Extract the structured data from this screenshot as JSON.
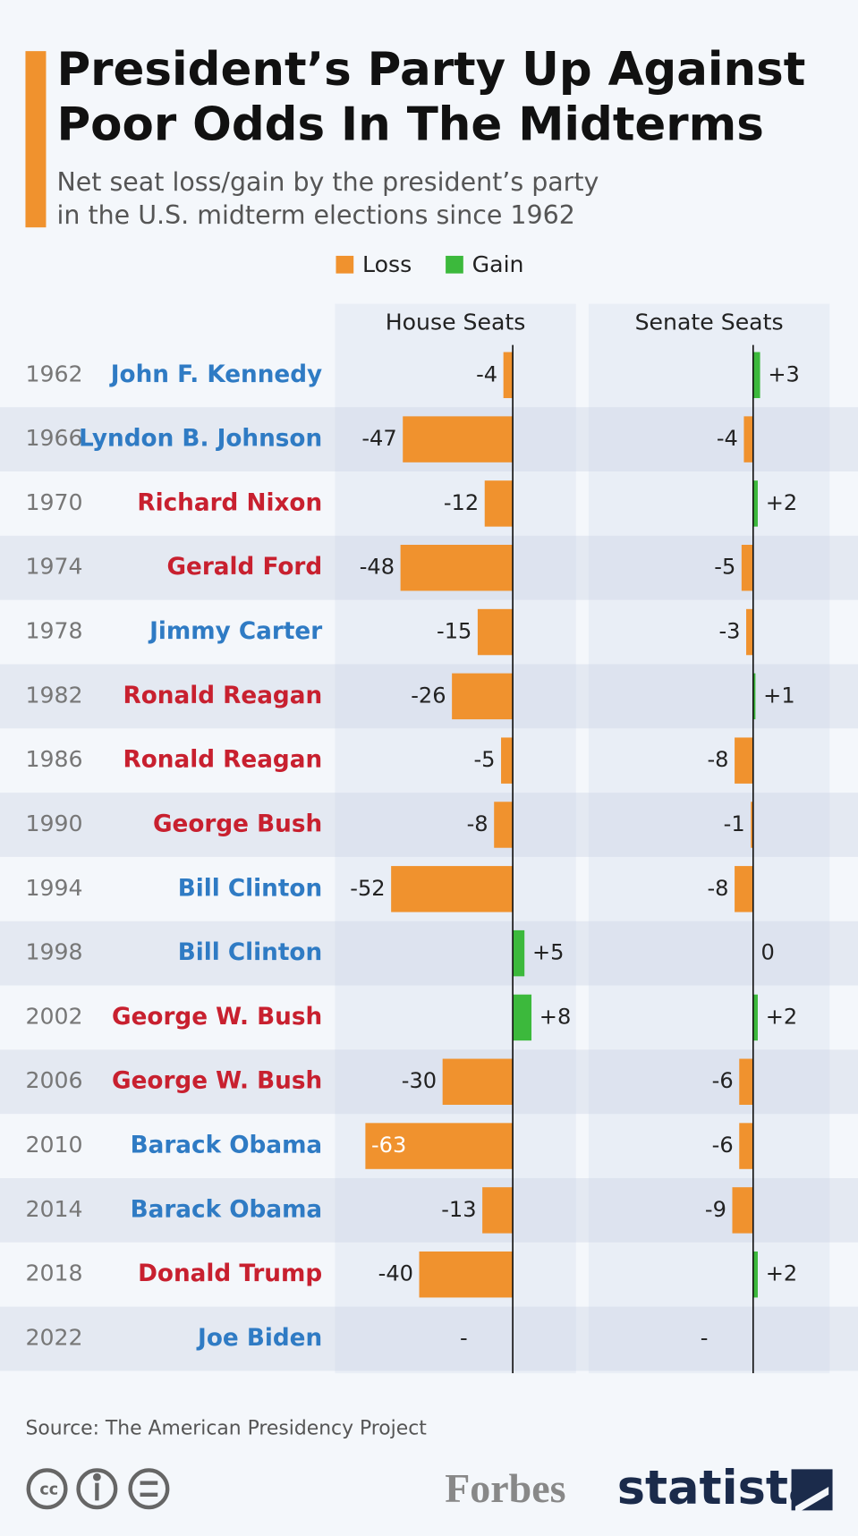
{
  "chart_data": {
    "type": "bar",
    "title": [
      "President’s Party Up Against",
      "Poor Odds In The Midterms"
    ],
    "subtitle": [
      "Net seat loss/gain by the president’s party",
      "in the U.S. midterm elections since 1962"
    ],
    "legend": [
      {
        "name": "Loss",
        "color": "#f0922e"
      },
      {
        "name": "Gain",
        "color": "#3cb93c"
      }
    ],
    "categories": [
      "1962",
      "1966",
      "1970",
      "1974",
      "1978",
      "1982",
      "1986",
      "1990",
      "1994",
      "1998",
      "2002",
      "2006",
      "2010",
      "2014",
      "2018",
      "2022"
    ],
    "presidents": [
      {
        "name": "John F. Kennedy",
        "color": "#2f7bc4"
      },
      {
        "name": "Lyndon B. Johnson",
        "color": "#2f7bc4"
      },
      {
        "name": "Richard Nixon",
        "color": "#c8202f"
      },
      {
        "name": "Gerald Ford",
        "color": "#c8202f"
      },
      {
        "name": "Jimmy Carter",
        "color": "#2f7bc4"
      },
      {
        "name": "Ronald Reagan",
        "color": "#c8202f"
      },
      {
        "name": "Ronald Reagan",
        "color": "#c8202f"
      },
      {
        "name": "George Bush",
        "color": "#c8202f"
      },
      {
        "name": "Bill Clinton",
        "color": "#2f7bc4"
      },
      {
        "name": "Bill Clinton",
        "color": "#2f7bc4"
      },
      {
        "name": "George W. Bush",
        "color": "#c8202f"
      },
      {
        "name": "George W. Bush",
        "color": "#c8202f"
      },
      {
        "name": "Barack Obama",
        "color": "#2f7bc4"
      },
      {
        "name": "Barack Obama",
        "color": "#2f7bc4"
      },
      {
        "name": "Donald Trump",
        "color": "#c8202f"
      },
      {
        "name": "Joe Biden",
        "color": "#2f7bc4"
      }
    ],
    "series": [
      {
        "name": "House Seats",
        "xlim": [
          -76,
          27
        ],
        "values": [
          -4,
          -47,
          -12,
          -48,
          -15,
          -26,
          -5,
          -8,
          -52,
          5,
          8,
          -30,
          -63,
          -13,
          -40,
          null
        ],
        "value_labels": [
          "-4",
          "-47",
          "-12",
          "-48",
          "-15",
          "-26",
          "-5",
          "-8",
          "-52",
          "+5",
          "+8",
          "-30",
          "-63",
          "-13",
          "-40",
          "-"
        ]
      },
      {
        "name": "Senate Seats",
        "xlim": [
          -71,
          33
        ],
        "values": [
          3,
          -4,
          2,
          -5,
          -3,
          1,
          -8,
          -1,
          -8,
          0,
          2,
          -6,
          -6,
          -9,
          2,
          null
        ],
        "value_labels": [
          "+3",
          "-4",
          "+2",
          "-5",
          "-3",
          "+1",
          "-8",
          "-1",
          "-8",
          "0",
          "+2",
          "-6",
          "-6",
          "-9",
          "+2",
          "-"
        ]
      }
    ],
    "source": "Source: The American Presidency Project",
    "logos": [
      "Forbes",
      "statista"
    ]
  }
}
